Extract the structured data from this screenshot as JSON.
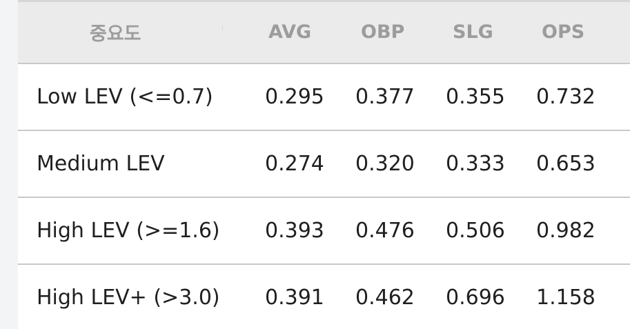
{
  "table": {
    "headers": [
      "중요도",
      "AVG",
      "OBP",
      "SLG",
      "OPS"
    ],
    "rows": [
      {
        "label": "Low LEV (<=0.7)",
        "avg": "0.295",
        "obp": "0.377",
        "slg": "0.355",
        "ops": "0.732"
      },
      {
        "label": "Medium LEV",
        "avg": "0.274",
        "obp": "0.320",
        "slg": "0.333",
        "ops": "0.653"
      },
      {
        "label": "High LEV (>=1.6)",
        "avg": "0.393",
        "obp": "0.476",
        "slg": "0.506",
        "ops": "0.982"
      },
      {
        "label": "High LEV+ (>3.0)",
        "avg": "0.391",
        "obp": "0.462",
        "slg": "0.696",
        "ops": "1.158"
      }
    ]
  },
  "colors": {
    "header_background": "#ebebeb",
    "header_text": "#9c9c9c",
    "body_text": "#1f1f1f",
    "row_divider": "#c9c9c9",
    "page_background": "#f3f4f6"
  }
}
